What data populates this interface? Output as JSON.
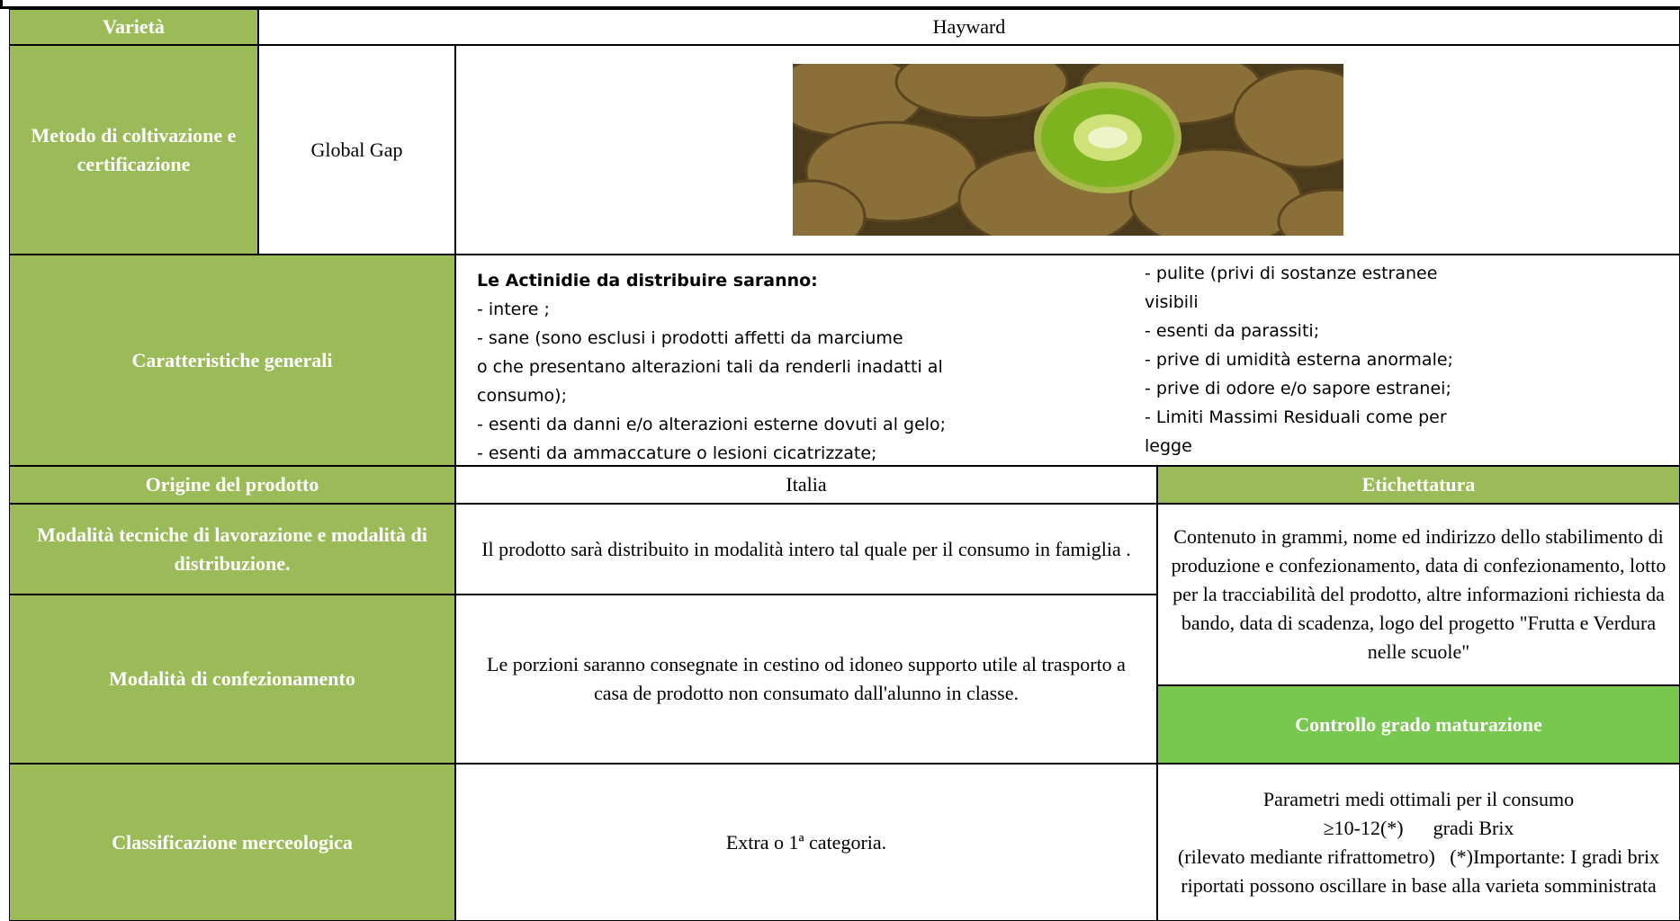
{
  "varieta": {
    "label": "Varietà",
    "value": "Hayward"
  },
  "metodo": {
    "label": "Metodo di coltivazione e certificazione",
    "value": "Global Gap"
  },
  "caratteristiche": {
    "label": "Caratteristiche generali",
    "heading": "Le Actinidie da distribuire saranno:",
    "left_lines": [
      "- intere ;",
      "- sane (sono esclusi i prodotti affetti da marciume",
      "o che presentano alterazioni tali da renderli inadatti al",
      "consumo);",
      "- esenti da danni e/o alterazioni esterne dovuti al gelo;",
      "- esenti da ammaccature o lesioni cicatrizzate;"
    ],
    "right_lines": [
      "- pulite (privi di sostanze estranee",
      "visibili",
      "- esenti da parassiti;",
      "- prive di umidità esterna anormale;",
      "- prive di odore e/o sapore estranei;",
      "- Limiti Massimi Residuali come per",
      "legge"
    ]
  },
  "origine": {
    "label": "Origine del prodotto",
    "value": "Italia"
  },
  "lavorazione": {
    "label": "Modalità tecniche di lavorazione e modalità di distribuzione.",
    "value": "Il prodotto sarà distribuito in modalità intero tal quale per il consumo in famiglia ."
  },
  "confezionamento": {
    "label": "Modalità di confezionamento",
    "value": "Le porzioni saranno consegnate in cestino od  idoneo supporto utile al trasporto a casa de prodotto non consumato dall'alunno in classe."
  },
  "classificazione": {
    "label": "Classificazione merceologica",
    "value": "Extra o 1ª categoria."
  },
  "etichettatura": {
    "label": "Etichettatura",
    "value": "Contenuto in grammi, nome ed indirizzo dello stabilimento di produzione e confezionamento, data di confezionamento, lotto per la tracciabilità del prodotto, altre informazioni richiesta da bando, data di scadenza, logo del progetto \"Frutta e Verdura nelle scuole\""
  },
  "maturazione": {
    "label": "Controllo grado maturazione",
    "lines": [
      "Parametri medi ottimali per il consumo",
      "≥10-12(*)      gradi Brix",
      "(rilevato mediante rifrattometro)   (*)Importante: I gradi brix riportati possono oscillare in base alla varieta somministrata"
    ]
  }
}
